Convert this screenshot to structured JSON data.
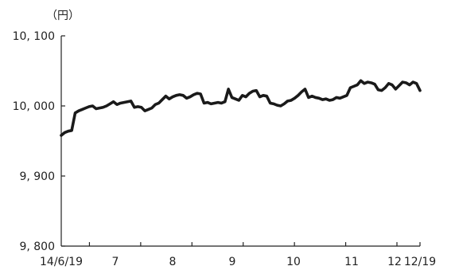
{
  "chart_data": {
    "type": "line",
    "unit": "（円）",
    "ylim": [
      9800,
      10100
    ],
    "y_ticks": [
      {
        "value": 9800,
        "label": "9, 800"
      },
      {
        "value": 9900,
        "label": "9, 900"
      },
      {
        "value": 10000,
        "label": "10, 000"
      },
      {
        "value": 10100,
        "label": "10, 100"
      }
    ],
    "x_labels": [
      "14/6/19",
      "7",
      "8",
      "9",
      "10",
      "11",
      "12",
      "12/19"
    ],
    "grid": false,
    "legend": "none",
    "line_color": "#1a1a1a",
    "series": [
      {
        "values": [
          9958,
          9962,
          9964,
          9965,
          9990,
          9993,
          9995,
          9997,
          9999,
          10000,
          9996,
          9997,
          9998,
          10000,
          10003,
          10006,
          10002,
          10004,
          10005,
          10006,
          10007,
          9998,
          9999,
          9998,
          9993,
          9995,
          9997,
          10002,
          10004,
          10009,
          10014,
          10010,
          10013,
          10015,
          10016,
          10015,
          10011,
          10013,
          10016,
          10018,
          10017,
          10004,
          10005,
          10003,
          10004,
          10005,
          10004,
          10006,
          10024,
          10012,
          10010,
          10008,
          10015,
          10013,
          10018,
          10021,
          10022,
          10013,
          10015,
          10014,
          10004,
          10003,
          10001,
          10000,
          10003,
          10007,
          10008,
          10011,
          10015,
          10020,
          10024,
          10012,
          10014,
          10012,
          10011,
          10009,
          10010,
          10008,
          10009,
          10012,
          10011,
          10013,
          10015,
          10026,
          10028,
          10030,
          10036,
          10032,
          10034,
          10033,
          10031,
          10023,
          10022,
          10026,
          10032,
          10030,
          10024,
          10029,
          10034,
          10033,
          10030,
          10034,
          10032,
          10022
        ]
      }
    ]
  }
}
